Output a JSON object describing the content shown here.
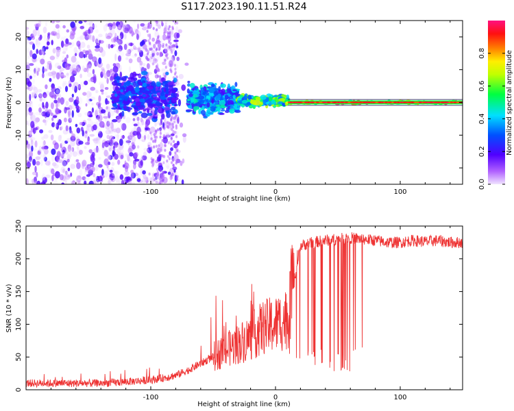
{
  "title": "S117.2023.190.11.51.R24",
  "colors": {
    "snr_line": "#ee3333",
    "scatter_low": "#8a2be2",
    "axis": "#000000"
  },
  "chart_data": [
    {
      "type": "heatmap",
      "title": "S117.2023.190.11.51.R24",
      "xlabel": "Height of straight line (km)",
      "ylabel": "Frequency (Hz)",
      "xlim": [
        -200,
        150
      ],
      "ylim": [
        -25,
        25
      ],
      "x_ticks": [
        -100,
        0,
        100
      ],
      "y_ticks": [
        -20,
        -10,
        0,
        10,
        20
      ],
      "x_tick_labels": [
        "-100",
        "0",
        "100"
      ],
      "y_tick_labels": [
        "-20",
        "-10",
        "0",
        "10",
        "20"
      ],
      "colorbar": {
        "label": "Normalized spectral amplitude",
        "range": [
          0,
          1
        ],
        "ticks": [
          0.0,
          0.2,
          0.4,
          0.6,
          0.8
        ],
        "tick_labels": [
          "0.0",
          "0.2",
          "0.4",
          "0.6",
          "0.8"
        ],
        "colormap": "rainbow (purple → blue → cyan → green → yellow → orange → red → magenta)"
      },
      "description_of_structure": [
        {
          "x_range": [
            -200,
            -130
          ],
          "freq_range": [
            -25,
            25
          ],
          "amplitude": 0.1
        },
        {
          "x_range": [
            -130,
            -80
          ],
          "freq_range": [
            -6,
            8
          ],
          "amplitude": 0.3
        },
        {
          "x_range": [
            -70,
            -30
          ],
          "freq_range": [
            -4,
            6
          ],
          "amplitude": 0.4
        },
        {
          "x_range": [
            -30,
            10
          ],
          "freq_range": [
            -1,
            2
          ],
          "amplitude": 0.6
        },
        {
          "x_range": [
            10,
            150
          ],
          "freq_range": [
            -0.5,
            0.5
          ],
          "amplitude": 0.9
        }
      ]
    },
    {
      "type": "line",
      "xlabel": "Height of straight line (km)",
      "ylabel": "SNR (10 * v/v)",
      "xlim": [
        -200,
        150
      ],
      "ylim": [
        0,
        250
      ],
      "x_ticks": [
        -100,
        0,
        100
      ],
      "y_ticks": [
        0,
        50,
        100,
        150,
        200,
        250
      ],
      "x_tick_labels": [
        "-100",
        "0",
        "100"
      ],
      "y_tick_labels": [
        "0",
        "50",
        "100",
        "150",
        "200",
        "250"
      ],
      "series": [
        {
          "x": [
            -200,
            -180,
            -160,
            -140,
            -120,
            -100,
            -90,
            -80,
            -70,
            -60,
            -50,
            -40,
            -30,
            -20,
            -10,
            0,
            10,
            20,
            30,
            40,
            50,
            60,
            70,
            80,
            90,
            100,
            110,
            120,
            130,
            140,
            150
          ],
          "values": [
            10,
            10,
            10,
            10,
            12,
            15,
            18,
            22,
            30,
            40,
            50,
            60,
            70,
            80,
            95,
            100,
            110,
            220,
            225,
            228,
            230,
            232,
            230,
            228,
            225,
            225,
            228,
            226,
            228,
            225,
            225
          ],
          "dropouts": {
            "x_range": [
              10,
              70
            ],
            "low": 25
          }
        }
      ]
    }
  ]
}
